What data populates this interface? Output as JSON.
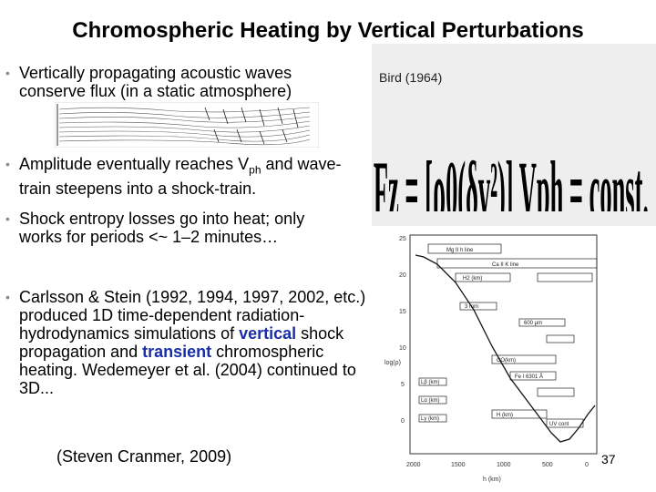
{
  "title": "Chromospheric Heating by Vertical Perturbations",
  "bullets": {
    "b1": "Vertically propagating acoustic waves conserve flux (in a static atmosphere)",
    "b2_pre": "Amplitude eventually reaches V",
    "b2_sub": "ph",
    "b2_post": " and wave-train steepens into a shock-train.",
    "b3_pre": "Shock entropy losses go into heat; only works for periods ",
    "b3_sym": "<~",
    "b3_post": " 1–2 minutes…",
    "b4_pre": "Carlsson & Stein (1992, 1994, 1997, 2002, etc.) produced 1D time-dependent radiation-hydrodynamics simulations of ",
    "b4_vertical": "vertical",
    "b4_mid": " shock propagation and ",
    "b4_transient": "transient",
    "b4_post": " chromospheric heating.  Wedemeyer et al. (2004) continued to 3D..."
  },
  "credit": "(Steven Cranmer, 2009)",
  "equation": {
    "citation": "Bird (1964)",
    "text": "Fz = [ρ0(δv²)] Vph = const."
  },
  "page_number": "37",
  "colors": {
    "emphasis": "#1a2ea8",
    "bullet": "#8a8a8a",
    "panel": "#eeeeee"
  },
  "chart_labels": {
    "y_axis_title": "log(ρ)",
    "y_ticks": [
      "25",
      "20",
      "15",
      "10",
      "5",
      "0"
    ],
    "x_ticks": [
      "2000",
      "1500",
      "1000",
      "500",
      "0"
    ],
    "x_axis_title": "h (km)",
    "line_labels": [
      "Mg II h line",
      "Ca II K line",
      "H2 (km)",
      "3 mm",
      "600 μm",
      "CO(km)",
      "Fe I 6301 Å",
      "Lβ (km)",
      "Lα (km)",
      "Lγ (km)",
      "H (km)",
      "UV cont"
    ]
  }
}
